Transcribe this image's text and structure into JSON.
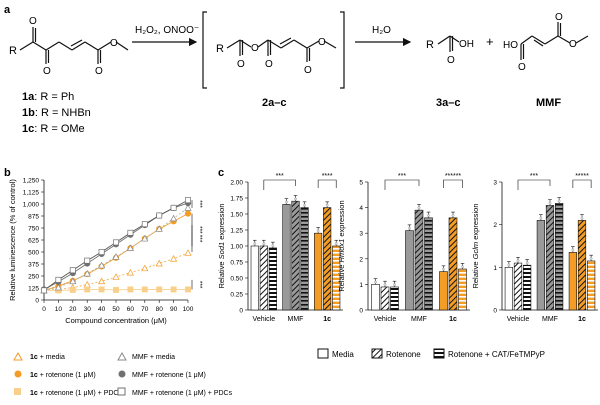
{
  "figure": {
    "panel_a": {
      "letter": "a",
      "reagent_1": "H₂O₂, ONOO⁻",
      "reagent_2": "H₂O",
      "plus": "+",
      "substituent_R": "R",
      "bracket_label": "2a–c",
      "acid_label": "3a–c",
      "mmf_label": "MMF",
      "oh_label": "OH",
      "ho_label": "HO",
      "compound_1a_id": "1a",
      "compound_1a_sub": ": R = Ph",
      "compound_1b_id": "1b",
      "compound_1b_sub": ": R = NHBn",
      "compound_1c_id": "1c",
      "compound_1c_sub": ": R = OMe"
    },
    "panel_b": {
      "letter": "b",
      "sig": [
        "***",
        "***",
        "***",
        "***"
      ],
      "legend": {
        "media_compound": "1c",
        "media": " + media",
        "rotenone_compound": "1c",
        "rotenone": " + rotenone (1 μM)",
        "pdcs_compound": "1c",
        "pdcs": " + rotenone (1 μM) + PDCs",
        "mmf_media": "MMF + media",
        "mmf_rotenone": "MMF + rotenone (1 μM)",
        "mmf_pdcs": "MMF + rotenone (1 μM) + PDCs"
      }
    },
    "panel_c": {
      "letter": "c",
      "groups": [
        "Vehicle",
        "MMF",
        "1c"
      ],
      "legend": {
        "media": "Media",
        "rotenone": "Rotenone",
        "rotenone_cat": "Rotenone + CAT/FeTMPyP"
      }
    },
    "colors": {
      "orange": "#f39c26",
      "light_orange": "#f9cf8c",
      "gray": "#9a9a9a",
      "dark_gray": "#707070"
    }
  },
  "chart_data": [
    {
      "type": "scatter",
      "panel": "b",
      "xlabel": "Compound concentration (μM)",
      "ylabel": "Relative luminescence (% of control)",
      "x": [
        0,
        10,
        20,
        30,
        40,
        50,
        60,
        70,
        80,
        90,
        100
      ],
      "xticks": [
        "0",
        "10",
        "20",
        "30",
        "40",
        "50",
        "60",
        "70",
        "80",
        "90",
        "100"
      ],
      "yticks": [
        "0",
        "125",
        "250",
        "375",
        "500",
        "625",
        "750",
        "875",
        "1,000",
        "1,125",
        "1,250"
      ],
      "ylim": [
        0,
        1250
      ],
      "series": [
        {
          "name": "1c + media",
          "values": [
            100,
            110,
            130,
            160,
            195,
            240,
            285,
            330,
            380,
            430,
            490
          ]
        },
        {
          "name": "1c + rotenone (1 μM)",
          "values": [
            100,
            145,
            200,
            270,
            350,
            440,
            540,
            640,
            740,
            820,
            900
          ]
        },
        {
          "name": "1c + rotenone (1 μM) + PDCs",
          "values": [
            100,
            100,
            105,
            110,
            110,
            105,
            110,
            110,
            110,
            110,
            110
          ]
        },
        {
          "name": "MMF + media",
          "values": [
            100,
            130,
            195,
            275,
            360,
            450,
            540,
            640,
            740,
            850,
            960
          ]
        },
        {
          "name": "MMF + rotenone (1 μM)",
          "values": [
            110,
            190,
            280,
            380,
            480,
            580,
            680,
            780,
            880,
            960,
            1010
          ]
        },
        {
          "name": "MMF + rotenone (1 μM) + PDCs",
          "values": [
            100,
            210,
            310,
            410,
            500,
            600,
            700,
            790,
            880,
            960,
            1040
          ]
        }
      ]
    },
    {
      "type": "bar",
      "panel": "c1",
      "ylabel": "Relative Sod1 expression",
      "gene": "Sod1",
      "ylabel_pre": "Relative ",
      "ylabel_post": " expression",
      "categories": [
        "Vehicle",
        "MMF",
        "1c"
      ],
      "ylim": [
        0,
        2.0
      ],
      "yticks": [
        "0",
        "0.25",
        "0.50",
        "0.75",
        "1.00",
        "1.25",
        "1.50",
        "1.75",
        "2.00"
      ],
      "series": [
        {
          "name": "Media",
          "values": [
            1.0,
            1.65,
            1.2
          ]
        },
        {
          "name": "Rotenone",
          "values": [
            1.0,
            1.7,
            1.6
          ]
        },
        {
          "name": "Rotenone + CAT/FeTMPyP",
          "values": [
            0.97,
            1.6,
            1.0
          ]
        }
      ],
      "sig": [
        "***",
        "****"
      ]
    },
    {
      "type": "bar",
      "panel": "c2",
      "ylabel": "Relative Hmox1 expression",
      "gene": "Hmox1",
      "ylabel_pre": "Relative ",
      "ylabel_post": " expression",
      "categories": [
        "Vehicle",
        "MMF",
        "1c"
      ],
      "ylim": [
        0,
        5
      ],
      "yticks": [
        "0",
        "1",
        "2",
        "3",
        "4",
        "5"
      ],
      "series": [
        {
          "name": "Media",
          "values": [
            1.0,
            3.1,
            1.5
          ]
        },
        {
          "name": "Rotenone",
          "values": [
            0.9,
            3.9,
            3.6
          ]
        },
        {
          "name": "Rotenone + CAT/FeTMPyP",
          "values": [
            0.9,
            3.6,
            1.6
          ]
        }
      ],
      "sig": [
        "***",
        "***",
        "***"
      ]
    },
    {
      "type": "bar",
      "panel": "c3",
      "ylabel": "Relative Gclm expression",
      "gene": "Gclm",
      "ylabel_pre": "Relative ",
      "ylabel_post": " expression",
      "categories": [
        "Vehicle",
        "MMF",
        "1c"
      ],
      "ylim": [
        0,
        3
      ],
      "yticks": [
        "0",
        "1",
        "2",
        "3"
      ],
      "series": [
        {
          "name": "Media",
          "values": [
            1.0,
            2.1,
            1.35
          ]
        },
        {
          "name": "Rotenone",
          "values": [
            1.1,
            2.45,
            2.1
          ]
        },
        {
          "name": "Rotenone + CAT/FeTMPyP",
          "values": [
            1.05,
            2.5,
            1.15
          ]
        }
      ],
      "sig": [
        "***",
        "**",
        "***"
      ]
    }
  ]
}
